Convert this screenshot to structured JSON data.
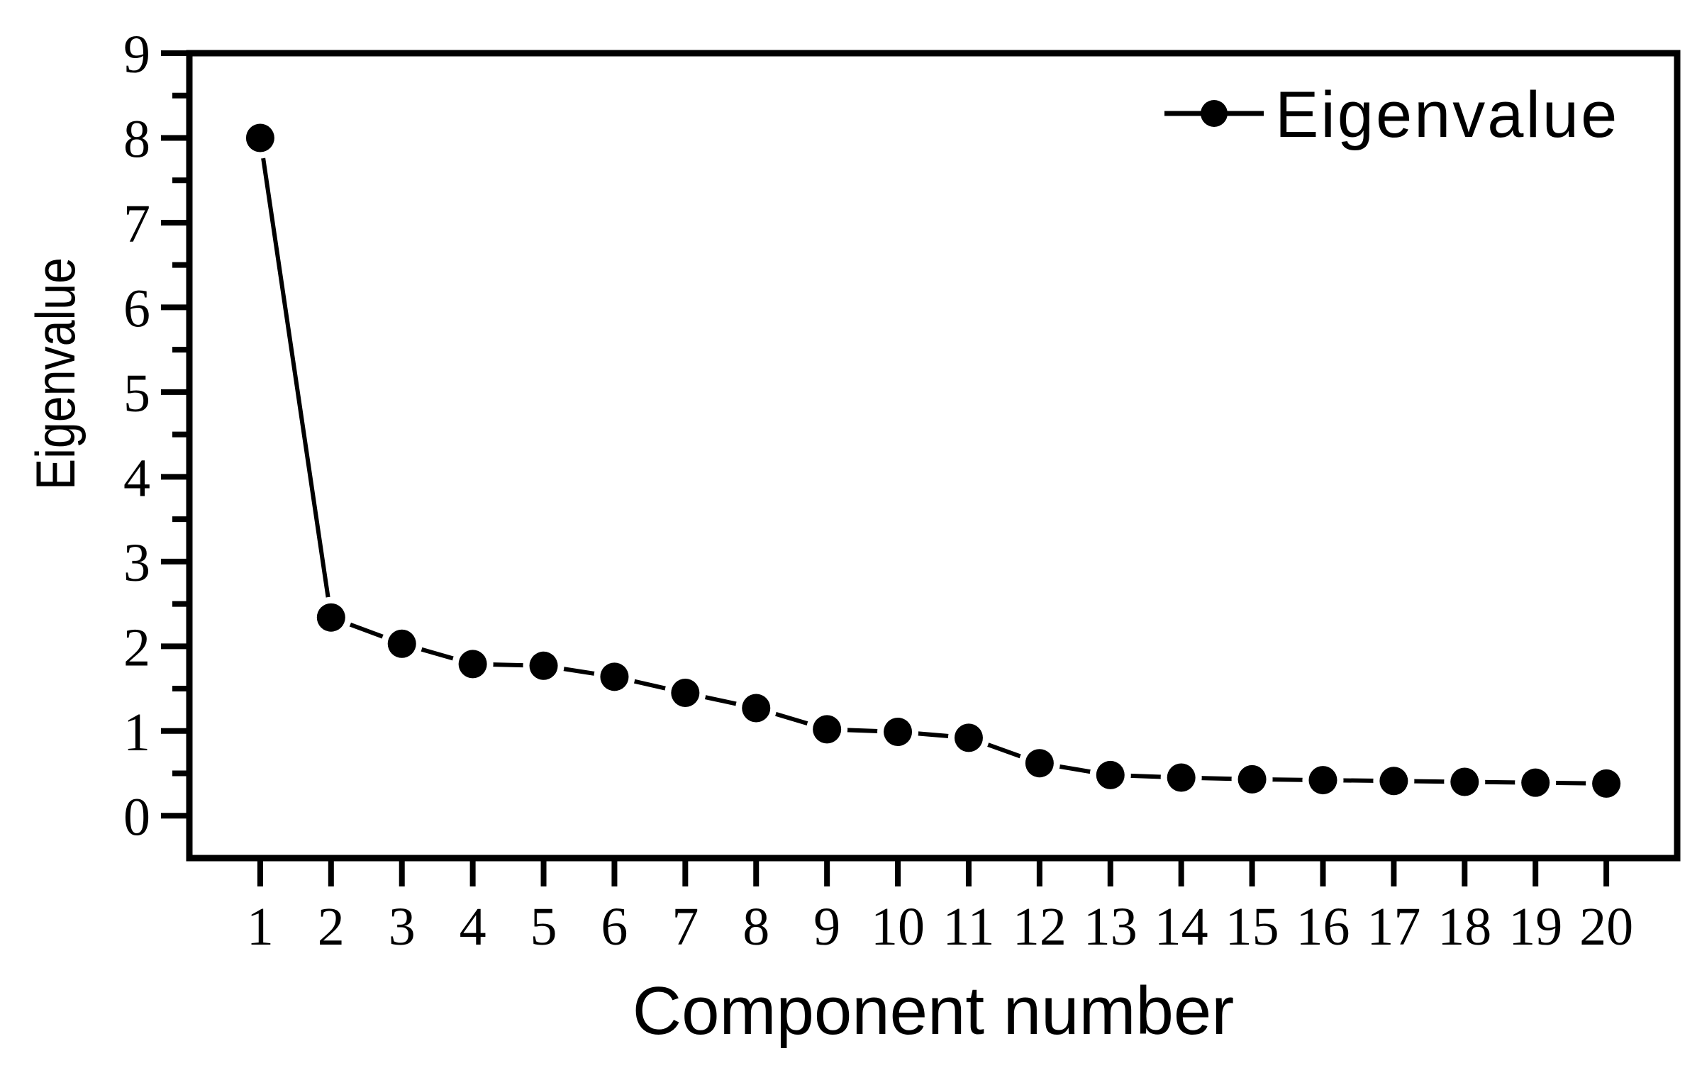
{
  "figure": {
    "background_color": "#ffffff",
    "foreground_color": "#000000"
  },
  "chart_data": {
    "type": "line",
    "title": "",
    "xlabel": "Component number",
    "ylabel": "Eigenvalue",
    "legend": {
      "label": "Eigenvalue",
      "position": "top-right",
      "marker": "filled-circle-on-line"
    },
    "x": [
      1,
      2,
      3,
      4,
      5,
      6,
      7,
      8,
      9,
      10,
      11,
      12,
      13,
      14,
      15,
      16,
      17,
      18,
      19,
      20
    ],
    "series": [
      {
        "name": "Eigenvalue",
        "values": [
          8.0,
          2.34,
          2.03,
          1.79,
          1.77,
          1.64,
          1.45,
          1.27,
          1.02,
          0.99,
          0.92,
          0.62,
          0.48,
          0.45,
          0.43,
          0.42,
          0.41,
          0.4,
          0.39,
          0.38
        ],
        "color": "#000000",
        "marker": "filled-circle",
        "line_style": "solid-with-marker-gaps"
      }
    ],
    "xlim": [
      0,
      21
    ],
    "ylim": [
      -0.5,
      9
    ],
    "xticks": [
      1,
      2,
      3,
      4,
      5,
      6,
      7,
      8,
      9,
      10,
      11,
      12,
      13,
      14,
      15,
      16,
      17,
      18,
      19,
      20
    ],
    "yticks_major": [
      0,
      1,
      2,
      3,
      4,
      5,
      6,
      7,
      8,
      9
    ],
    "ytick_minor_step": 0.5,
    "grid": false,
    "frame": true,
    "tick_direction": "out"
  }
}
